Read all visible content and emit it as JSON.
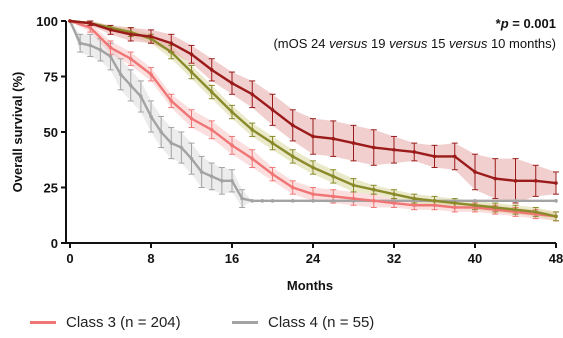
{
  "chart_data": {
    "type": "line",
    "title": "",
    "xlabel": "Months",
    "ylabel": "Overall survival (%)",
    "xlim": [
      0,
      48
    ],
    "ylim": [
      0,
      100
    ],
    "xticks": [
      "0",
      "8",
      "16",
      "24",
      "32",
      "40",
      "48"
    ],
    "yticks": [
      "0",
      "25",
      "50",
      "75",
      "100"
    ],
    "grid": false,
    "legend_placement": "bottom",
    "annotation_pvalue_prefix": "*",
    "annotation_pvalue_symbol": "p",
    "annotation_pvalue_rest": " = 0.001",
    "annotation_mos": [
      {
        "text": "(mOS 24 ",
        "italic": false
      },
      {
        "text": "versus",
        "italic": true
      },
      {
        "text": " 19 ",
        "italic": false
      },
      {
        "text": "versus",
        "italic": true
      },
      {
        "text": " 15 ",
        "italic": false
      },
      {
        "text": "versus",
        "italic": true
      },
      {
        "text": " 10 months)",
        "italic": false
      }
    ],
    "series": [
      {
        "name": "",
        "color": "#9b1b1b",
        "band_color": "#e8a8a8",
        "x": [
          0,
          2,
          4,
          6,
          8,
          10,
          12,
          14,
          16,
          18,
          20,
          22,
          24,
          26,
          28,
          30,
          32,
          34,
          36,
          38,
          40,
          42,
          44,
          46,
          48
        ],
        "y": [
          100,
          99,
          96,
          94,
          93,
          90,
          85,
          78,
          72,
          67,
          60,
          53,
          48,
          47,
          45,
          43,
          42,
          41,
          39,
          39,
          32,
          29,
          28,
          28,
          27
        ],
        "err": [
          0,
          1,
          2,
          3,
          3,
          4,
          4,
          5,
          5,
          6,
          7,
          7,
          8,
          8,
          8,
          8,
          6,
          4,
          5,
          6,
          8,
          9,
          10,
          7,
          5
        ]
      },
      {
        "name": "",
        "color": "#8a8a2a",
        "band_color": "#d9d9a0",
        "x": [
          0,
          2,
          4,
          6,
          8,
          10,
          12,
          14,
          16,
          18,
          20,
          22,
          24,
          26,
          28,
          30,
          32,
          34,
          36,
          38,
          40,
          42,
          44,
          46,
          48
        ],
        "y": [
          100,
          99,
          97,
          95,
          92,
          86,
          77,
          68,
          59,
          51,
          45,
          39,
          34,
          30,
          26,
          24,
          22,
          20,
          19,
          18,
          17,
          16,
          15,
          14,
          12
        ],
        "err": [
          0,
          1,
          1,
          2,
          2,
          3,
          3,
          3,
          3,
          3,
          3,
          3,
          3,
          3,
          3,
          2,
          2,
          2,
          2,
          2,
          2,
          2,
          2,
          2,
          2
        ]
      },
      {
        "name": "Class 3 (n = 204)",
        "color": "#f07575",
        "band_color": "#f8c4c4",
        "x": [
          0,
          2,
          4,
          6,
          8,
          10,
          12,
          14,
          16,
          18,
          20,
          22,
          24,
          26,
          28,
          30,
          32,
          34,
          36,
          38,
          40,
          42,
          44,
          46,
          48
        ],
        "y": [
          100,
          97,
          88,
          83,
          76,
          64,
          56,
          51,
          44,
          38,
          31,
          25,
          22,
          21,
          20,
          19,
          18,
          17,
          17,
          16,
          16,
          15,
          14,
          13,
          12
        ],
        "err": [
          0,
          2,
          3,
          3,
          3,
          3,
          4,
          4,
          4,
          4,
          3,
          3,
          3,
          3,
          3,
          3,
          2,
          2,
          2,
          2,
          2,
          2,
          2,
          2,
          2
        ]
      },
      {
        "name": "Class 4 (n = 55)",
        "color": "#a3a3a3",
        "band_color": "#dcdcdc",
        "x": [
          0,
          1,
          2,
          3,
          4,
          5,
          6,
          7,
          8,
          9,
          10,
          11,
          12,
          13,
          14,
          15,
          16,
          17,
          18,
          19,
          20,
          22,
          24,
          26,
          28,
          30,
          32,
          36,
          40,
          44,
          48
        ],
        "y": [
          100,
          90,
          89,
          87,
          84,
          76,
          71,
          66,
          57,
          50,
          45,
          43,
          38,
          32,
          30,
          28,
          28,
          20,
          19,
          19,
          19,
          19,
          19,
          19,
          19,
          19,
          19,
          19,
          19,
          19,
          19
        ],
        "err": [
          0,
          4,
          5,
          5,
          6,
          7,
          7,
          7,
          7,
          7,
          7,
          7,
          7,
          7,
          6,
          6,
          5,
          4,
          0,
          0,
          0,
          0,
          0,
          0,
          0,
          0,
          0,
          0,
          0,
          0,
          0
        ]
      }
    ]
  }
}
